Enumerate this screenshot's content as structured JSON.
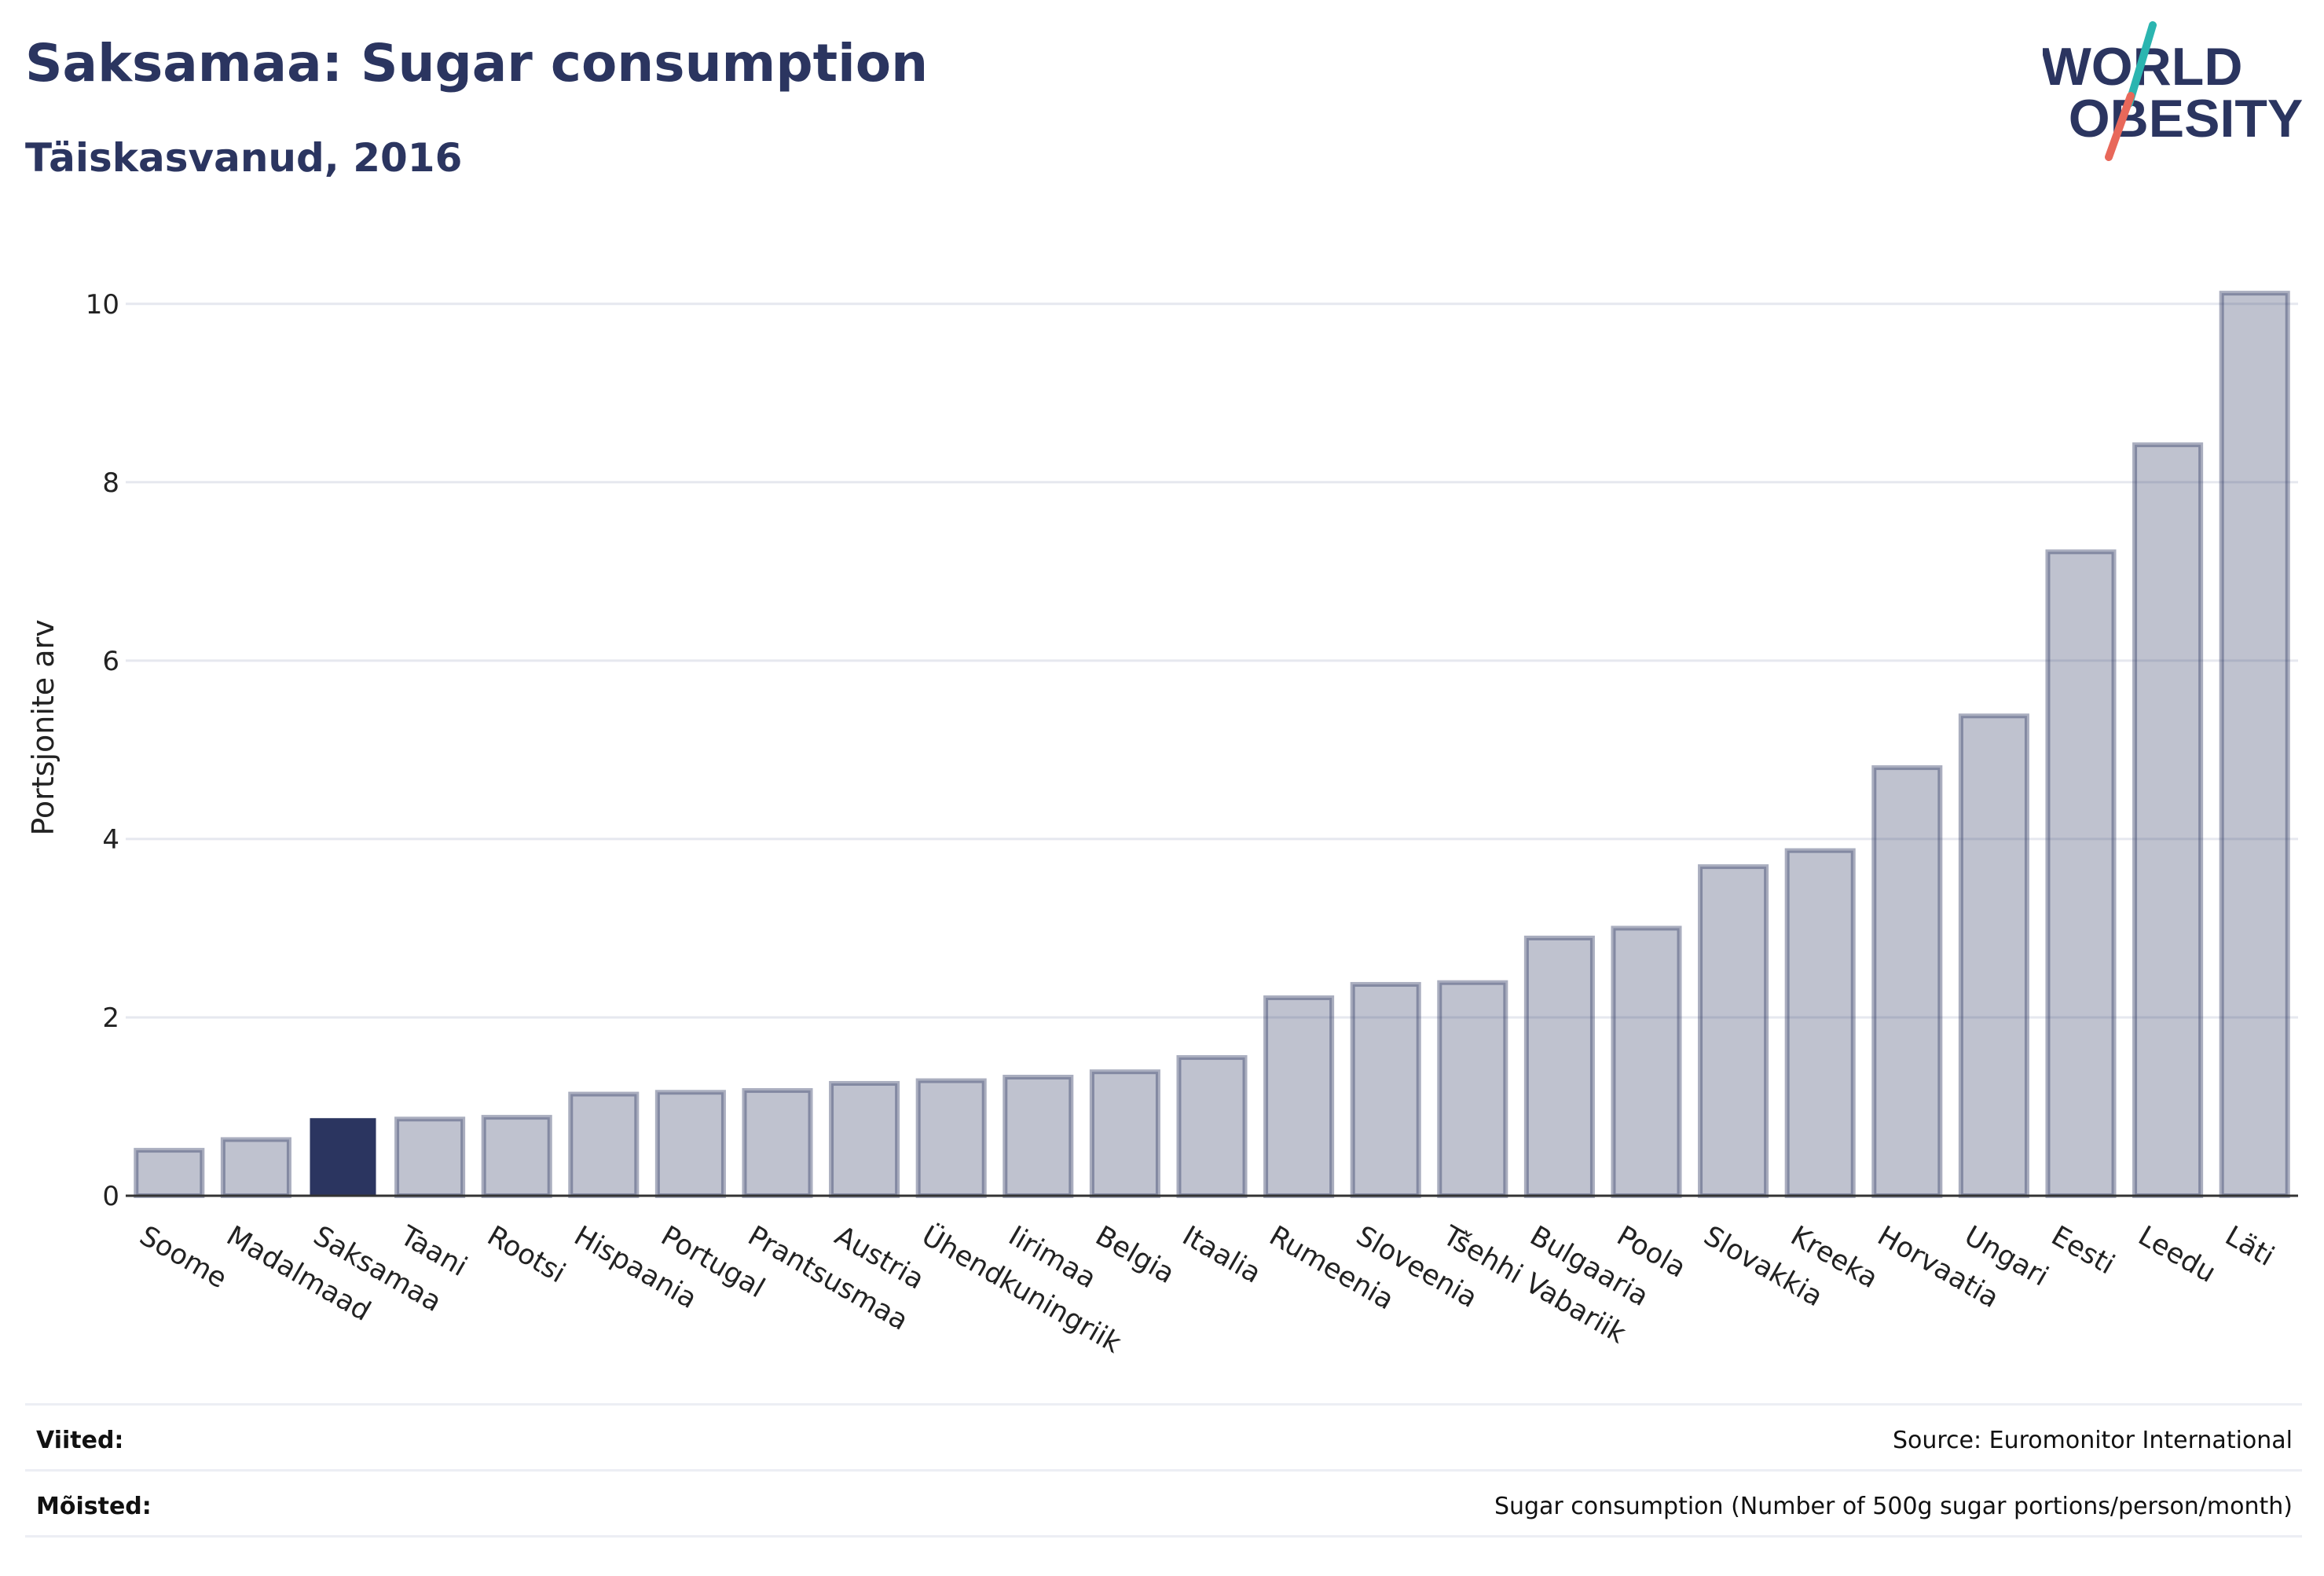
{
  "header": {
    "title": "Saksamaa: Sugar consumption",
    "subtitle": "Täiskasvanud, 2016"
  },
  "logo": {
    "line1": "WORLD",
    "line2": "OBESITY",
    "text_color": "#2b3560",
    "slash_colors": [
      "#2bb5b0",
      "#e8685a"
    ]
  },
  "chart_data": {
    "type": "bar",
    "title": "Saksamaa: Sugar consumption",
    "subtitle": "Täiskasvanud, 2016",
    "xlabel": "",
    "ylabel": "Portsjonite arv",
    "ylim": [
      0,
      10.5
    ],
    "yticks": [
      0,
      2,
      4,
      6,
      8,
      10
    ],
    "grid": true,
    "highlight": "Saksamaa",
    "colors": {
      "bar": "#2b3560",
      "bar_opacity": 0.3,
      "highlight": "#2b3560",
      "grid": "#e6e8ef",
      "axis": "#333333"
    },
    "categories": [
      "Soome",
      "Madalmaad",
      "Saksamaa",
      "Taani",
      "Rootsi",
      "Hispaania",
      "Portugal",
      "Prantsusmaa",
      "Austria",
      "Ühendkuningriik",
      "Iirimaa",
      "Belgia",
      "Itaalia",
      "Rumeenia",
      "Sloveenia",
      "Tšehhi Vabariik",
      "Bulgaaria",
      "Poola",
      "Slovakkia",
      "Kreeka",
      "Horvaatia",
      "Ungari",
      "Eesti",
      "Leedu",
      "Läti"
    ],
    "values": [
      0.51,
      0.63,
      0.87,
      0.86,
      0.88,
      1.14,
      1.16,
      1.18,
      1.26,
      1.29,
      1.33,
      1.39,
      1.55,
      2.22,
      2.37,
      2.39,
      2.89,
      3.0,
      3.69,
      3.87,
      4.8,
      5.38,
      7.22,
      8.42,
      10.12
    ]
  },
  "footer": {
    "references_label": "Viited:",
    "references_value": "Source: Euromonitor International",
    "definitions_label": "Mõisted:",
    "definitions_value": "Sugar consumption (Number of 500g sugar portions/person/month)"
  }
}
